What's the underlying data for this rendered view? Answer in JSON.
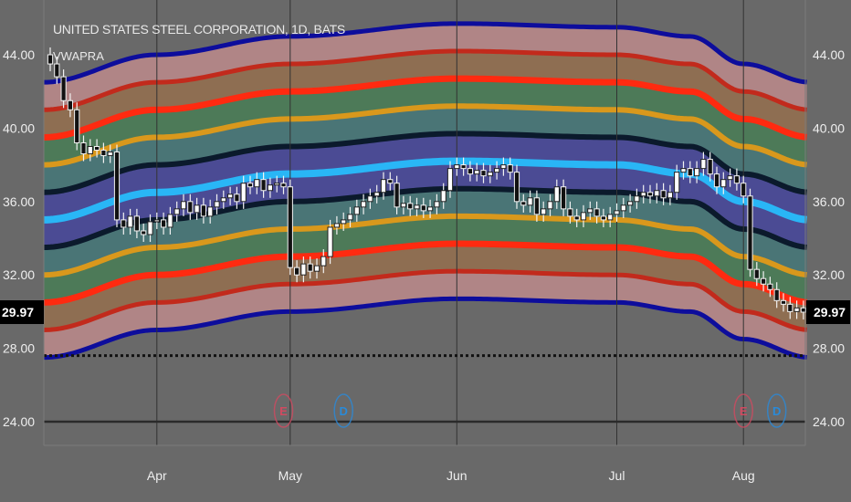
{
  "header": {
    "title": "UNITED STATES STEEL CORPORATION, 1D, BATS",
    "indicator": "VWAPRA"
  },
  "colors": {
    "background": "#696969",
    "center": "#29b6f6",
    "band1": "#0b1a2c",
    "band2": "#d9981c",
    "band3": "#ff2a10",
    "band4": "#c22a1c",
    "band5": "#0d0d9c",
    "fill1": "#4b4b94",
    "fill2": "#4a7576",
    "fill3": "#4d7a58",
    "fill4": "#8e6e52",
    "fill5": "#b08586",
    "earnings": "#d04a60",
    "dividend": "#2a8ad8"
  },
  "chart_data": {
    "type": "candlestick",
    "title": "UNITED STATES STEEL CORPORATION, 1D, BATS",
    "indicator": "VWAPRA",
    "ylim": [
      22,
      47
    ],
    "y_ticks": [
      "44.00",
      "40.00",
      "36.00",
      "32.00",
      "28.00",
      "24.00"
    ],
    "y_tick_values": [
      44,
      40,
      36,
      32,
      28,
      24
    ],
    "last_price": 29.97,
    "last_price_label": "29.97",
    "dotted_level": 27.6,
    "x_labels": [
      {
        "label": "Apr",
        "bar": 16
      },
      {
        "label": "May",
        "bar": 36
      },
      {
        "label": "Jun",
        "bar": 61
      },
      {
        "label": "Jul",
        "bar": 85
      },
      {
        "label": "Aug",
        "bar": 104
      }
    ],
    "first_open": 44.0,
    "closes": [
      43.5,
      42.8,
      41.5,
      41.0,
      39.2,
      38.6,
      39.0,
      38.8,
      38.5,
      38.7,
      35.0,
      34.6,
      35.2,
      34.4,
      34.2,
      34.9,
      35.0,
      34.6,
      35.3,
      35.6,
      36.0,
      35.4,
      35.8,
      35.2,
      35.7,
      36.0,
      36.2,
      36.4,
      36.0,
      37.0,
      36.8,
      37.2,
      36.6,
      36.9,
      37.0,
      36.8,
      32.4,
      32.0,
      32.6,
      32.2,
      32.5,
      33.0,
      34.6,
      34.8,
      35.0,
      35.3,
      35.7,
      36.0,
      36.3,
      36.5,
      37.2,
      37.0,
      35.7,
      35.9,
      35.6,
      35.8,
      35.5,
      35.7,
      36.0,
      36.6,
      37.8,
      38.0,
      37.8,
      37.5,
      37.7,
      37.4,
      37.6,
      37.8,
      38.0,
      37.6,
      36.0,
      35.8,
      36.2,
      35.3,
      35.6,
      36.0,
      36.8,
      35.6,
      35.2,
      35.0,
      35.4,
      35.6,
      35.2,
      35.0,
      35.3,
      35.5,
      35.8,
      36.0,
      36.3,
      36.5,
      36.3,
      36.6,
      36.2,
      36.5,
      37.6,
      37.8,
      37.4,
      37.8,
      38.3,
      37.5,
      36.8,
      37.2,
      37.4,
      37.0,
      36.3,
      32.3,
      31.8,
      31.5,
      31.2,
      30.6,
      30.4,
      30.0,
      30.2,
      29.97
    ],
    "vwap_center": [
      [
        -1,
        35.0
      ],
      [
        16,
        36.5
      ],
      [
        36,
        37.5
      ],
      [
        61,
        38.2
      ],
      [
        85,
        38.0
      ],
      [
        96,
        37.5
      ],
      [
        104,
        36.0
      ],
      [
        114,
        35.0
      ]
    ],
    "band_sigma": 1.5,
    "band_levels": [
      1,
      2,
      3,
      4,
      5
    ],
    "events": [
      {
        "type": "earnings",
        "label": "E",
        "bar": 35
      },
      {
        "type": "dividend",
        "label": "D",
        "bar": 44
      },
      {
        "type": "earnings",
        "label": "E",
        "bar": 104
      },
      {
        "type": "dividend",
        "label": "D",
        "bar": 109
      }
    ]
  }
}
